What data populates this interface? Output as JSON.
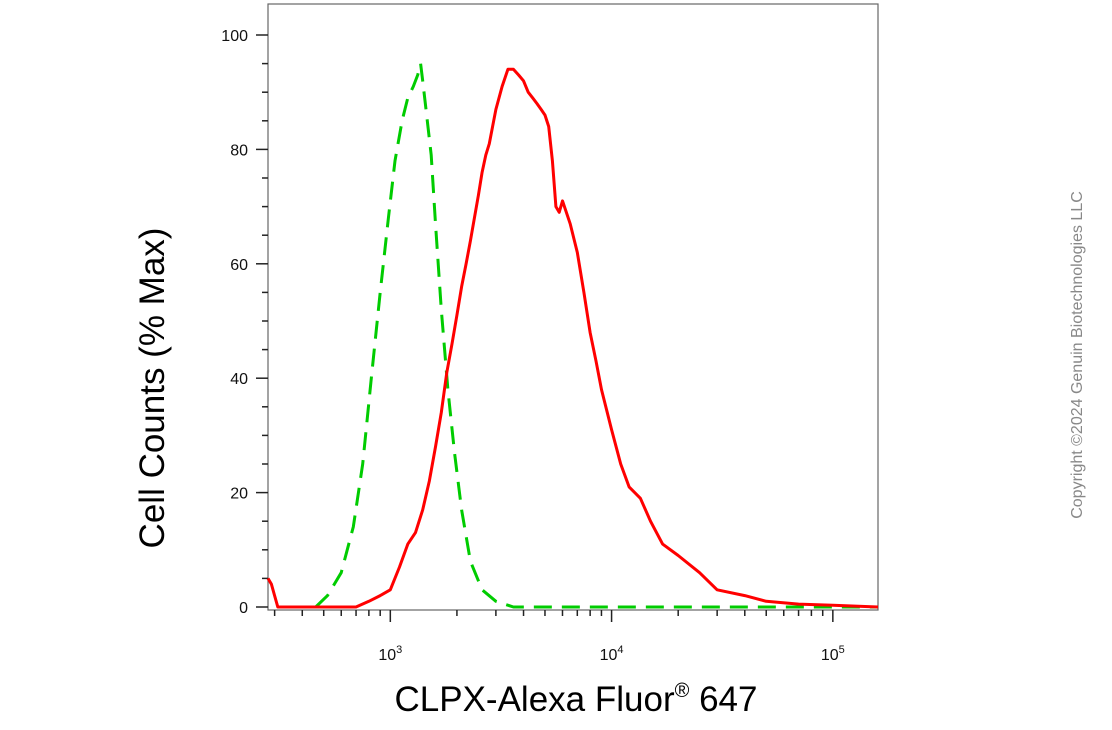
{
  "chart_data": {
    "type": "line",
    "title": "",
    "xlabel": "CLPX-Alexa Fluor",
    "xlabel_superscript": "®",
    "xlabel_suffix": " 647",
    "ylabel": "Cell Counts (% Max)",
    "xscale": "log",
    "xlim": [
      280,
      160000
    ],
    "ylim": [
      0,
      105
    ],
    "y_ticks": [
      0,
      20,
      40,
      60,
      80,
      100
    ],
    "x_ticks": [
      {
        "value": 1000,
        "base": "10",
        "exp": "3"
      },
      {
        "value": 10000,
        "base": "10",
        "exp": "4"
      },
      {
        "value": 100000,
        "base": "10",
        "exp": "5"
      }
    ],
    "grid": false,
    "series": [
      {
        "color": "#00cc00",
        "dash": "dashed",
        "x": [
          460,
          520,
          600,
          680,
          750,
          820,
          900,
          980,
          1050,
          1130,
          1200,
          1270,
          1330,
          1370,
          1400,
          1450,
          1530,
          1600,
          1700,
          1820,
          1950,
          2100,
          2300,
          2600,
          3000,
          3600,
          5000,
          10000,
          50000,
          160000
        ],
        "y": [
          0,
          2,
          6,
          14,
          25,
          40,
          55,
          68,
          78,
          85,
          89,
          91,
          93,
          95,
          92,
          87,
          79,
          67,
          52,
          38,
          27,
          17,
          8,
          3,
          1,
          0,
          0,
          0,
          0,
          0
        ]
      },
      {
        "color": "#ff0000",
        "dash": "solid",
        "x": [
          280,
          290,
          300,
          310,
          330,
          360,
          400,
          500,
          700,
          800,
          900,
          1000,
          1100,
          1200,
          1300,
          1400,
          1500,
          1600,
          1700,
          1800,
          1900,
          2000,
          2100,
          2200,
          2300,
          2400,
          2500,
          2600,
          2700,
          2800,
          2900,
          3000,
          3200,
          3400,
          3600,
          3800,
          4000,
          4200,
          4400,
          4600,
          4800,
          5000,
          5200,
          5400,
          5600,
          5800,
          6000,
          6500,
          7000,
          7500,
          8000,
          8500,
          9000,
          10000,
          11000,
          12000,
          13500,
          15000,
          17000,
          20000,
          25000,
          30000,
          40000,
          50000,
          70000,
          100000,
          160000
        ],
        "y": [
          5,
          4,
          2,
          0,
          0,
          0,
          0,
          0,
          0,
          1,
          2,
          3,
          7,
          11,
          13,
          17,
          22,
          28,
          34,
          41,
          46,
          51,
          56,
          60,
          64,
          68,
          72,
          76,
          79,
          81,
          84,
          87,
          91,
          94,
          94,
          93,
          92,
          90,
          89,
          88,
          87,
          86,
          84,
          78,
          70,
          69,
          71,
          67,
          62,
          55,
          48,
          43,
          38,
          31,
          25,
          21,
          19,
          15,
          11,
          9,
          6,
          3,
          2,
          1,
          0.5,
          0.3,
          0
        ]
      }
    ]
  },
  "copyright": "Copyright ©2024 Genuin Biotechnologies LLC"
}
